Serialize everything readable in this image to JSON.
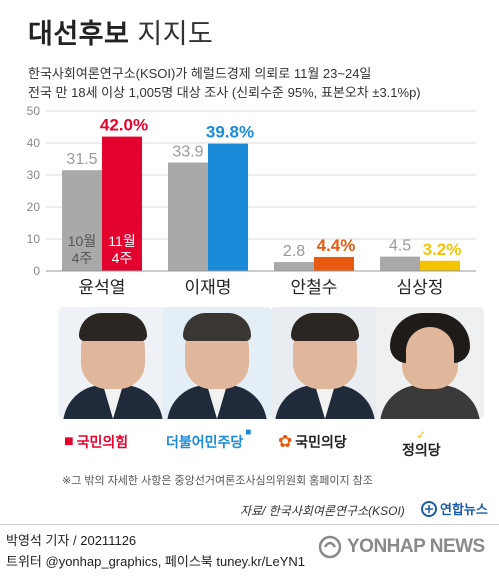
{
  "header": {
    "title": "대선후보",
    "subtitle": "지지도",
    "info_line1": "한국사회여론연구소(KSOI)가 헤럴드경제 의뢰로 11월 23~24일",
    "info_line2": "전국 만 18세 이상 1,005명 대상 조사 (신뢰수준 95%, 표본오차 ±3.1%p)"
  },
  "chart_data": {
    "type": "bar",
    "categories": [
      "윤석열",
      "이재명",
      "안철수",
      "심상정"
    ],
    "series": [
      {
        "name": "10월 4주",
        "label_lines": [
          "10월",
          "4주"
        ],
        "values": [
          31.5,
          33.9,
          2.8,
          4.5
        ],
        "color": "#a9a9a9"
      },
      {
        "name": "11월 4주",
        "label_lines": [
          "11월",
          "4주"
        ],
        "values": [
          42.0,
          39.8,
          4.4,
          3.2
        ],
        "colors": [
          "#e4032e",
          "#1a8bd8",
          "#e85a0f",
          "#f5c400"
        ]
      }
    ],
    "value_labels_prev": [
      "31.5",
      "33.9",
      "2.8",
      "4.5"
    ],
    "value_labels_curr": [
      "42.0%",
      "39.8%",
      "4.4%",
      "3.2%"
    ],
    "yticks": [
      0,
      10,
      20,
      30,
      40,
      50
    ],
    "ylim": [
      0,
      50
    ],
    "grid": true,
    "legend": "inside first bar pair"
  },
  "parties": [
    {
      "name": "국민의힘",
      "color": "#e4032e",
      "symbol": "■"
    },
    {
      "name": "더불어민주당",
      "color": "#1a8bd8",
      "symbol": "■"
    },
    {
      "name": "국민의당",
      "color": "#e85a0f",
      "symbol": "✿"
    },
    {
      "name": "정의당",
      "color": "#222222",
      "symbol": "✓"
    }
  ],
  "note": "※그 밖의 자세한 사항은 중앙선거여론조사심의위원회 홈페이지 참조",
  "source": "자료/ 한국사회여론연구소(KSOI)",
  "brand_small": "연합뉴스",
  "byline1": "박영석 기자 /  20211126",
  "byline2": "트위터 @yonhap_graphics, 페이스북 tuney.kr/LeYN1",
  "watermark": "YONHAP NEWS"
}
